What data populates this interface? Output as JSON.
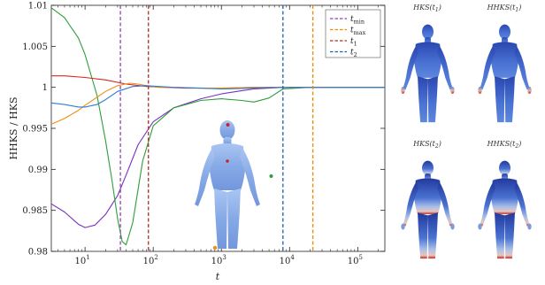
{
  "chart_data": {
    "type": "line",
    "xscale": "log",
    "xlim": [
      3.2,
      250000
    ],
    "ylim": [
      0.98,
      1.01
    ],
    "xlabel": "t",
    "ylabel": "HHKS / HKS",
    "grid": false,
    "legend_position": "top-right",
    "xticks": [
      {
        "value": 10,
        "label": "10",
        "exp": "1"
      },
      {
        "value": 100,
        "label": "10",
        "exp": "2"
      },
      {
        "value": 1000,
        "label": "10",
        "exp": "3"
      },
      {
        "value": 10000,
        "label": "10",
        "exp": "4"
      },
      {
        "value": 100000,
        "label": "10",
        "exp": "5"
      }
    ],
    "yticks": [
      {
        "value": 0.98,
        "label": "0.98"
      },
      {
        "value": 0.985,
        "label": "0.985"
      },
      {
        "value": 0.99,
        "label": "0.99"
      },
      {
        "value": 0.995,
        "label": "0.995"
      },
      {
        "value": 1.0,
        "label": "1"
      },
      {
        "value": 1.005,
        "label": "1.005"
      },
      {
        "value": 1.01,
        "label": "1.01"
      }
    ],
    "vlines": [
      {
        "key": "tmin",
        "sub": "min",
        "x": 33,
        "color": "#8e44ad"
      },
      {
        "key": "tmax",
        "sub": "max",
        "x": 22000,
        "color": "#f08c00"
      },
      {
        "key": "t1",
        "sub": "1",
        "x": 85,
        "color": "#b03020"
      },
      {
        "key": "t2",
        "sub": "2",
        "x": 8000,
        "color": "#1f5fa8"
      }
    ],
    "series": [
      {
        "color": "#7b2fbf",
        "x": [
          3.2,
          5,
          8,
          10,
          14,
          20,
          30,
          40,
          60,
          100,
          200,
          500,
          1000,
          2000,
          3000,
          5000,
          8000,
          20000,
          250000
        ],
        "y": [
          0.9858,
          0.9848,
          0.9833,
          0.9829,
          0.9832,
          0.9845,
          0.9868,
          0.9893,
          0.993,
          0.9958,
          0.9975,
          0.9986,
          0.9992,
          0.9996,
          0.9998,
          0.9999,
          1.0,
          1.0,
          1.0
        ]
      },
      {
        "color": "#2e9e3a",
        "x": [
          3.2,
          5,
          8,
          10,
          15,
          20,
          25,
          30,
          35,
          40,
          50,
          70,
          100,
          200,
          500,
          1000,
          2000,
          3000,
          5000,
          8000,
          20000,
          250000
        ],
        "y": [
          1.0097,
          1.0085,
          1.006,
          1.004,
          0.999,
          0.9935,
          0.9885,
          0.984,
          0.9812,
          0.9808,
          0.9835,
          0.991,
          0.9953,
          0.9975,
          0.9984,
          0.9986,
          0.9984,
          0.9982,
          0.9987,
          0.9998,
          1.0,
          1.0
        ]
      },
      {
        "color": "#d9261c",
        "x": [
          3.2,
          5,
          10,
          20,
          40,
          80,
          150,
          300,
          1000,
          3000,
          10000,
          250000
        ],
        "y": [
          1.0014,
          1.0014,
          1.0012,
          1.0009,
          1.0004,
          1.0001,
          1.0,
          0.9999,
          0.9999,
          1.0,
          1.0,
          1.0
        ]
      },
      {
        "color": "#f28c1a",
        "x": [
          3.2,
          5,
          8,
          10,
          15,
          20,
          30,
          45,
          60,
          80,
          120,
          200,
          500,
          1000,
          3000,
          10000,
          250000
        ],
        "y": [
          0.9955,
          0.9962,
          0.9972,
          0.9978,
          0.9988,
          0.9995,
          1.0002,
          1.0005,
          1.0004,
          1.0002,
          1.0,
          1.0,
          0.9999,
          0.9999,
          1.0,
          1.0,
          1.0
        ]
      },
      {
        "color": "#2a7fd0",
        "x": [
          3.2,
          5,
          8,
          10,
          15,
          20,
          30,
          50,
          80,
          120,
          200,
          500,
          1000,
          3000,
          8000,
          250000
        ],
        "y": [
          0.9981,
          0.9979,
          0.9976,
          0.9976,
          0.9979,
          0.9985,
          0.9995,
          1.0001,
          1.0002,
          1.0001,
          1.0,
          0.9999,
          0.9998,
          0.9999,
          1.0,
          1.0
        ]
      }
    ]
  },
  "panels": [
    {
      "key": "hks_t1",
      "label": "HKS(t",
      "sub": "1",
      "variant": "t1"
    },
    {
      "key": "hhks_t1",
      "label": "HHKS(t",
      "sub": "1",
      "variant": "t1"
    },
    {
      "key": "hks_t2",
      "label": "HKS(t",
      "sub": "2",
      "variant": "t2"
    },
    {
      "key": "hhks_t2",
      "label": "HHKS(t",
      "sub": "2",
      "variant": "t2"
    }
  ],
  "colors": {
    "axis": "#222222",
    "body_light": "#8fb3ea",
    "body_mid": "#3f68cc",
    "body_dark": "#2546b0",
    "hot": "#c0392b",
    "marker_red": "#d0202a",
    "marker_orange": "#f28c1a",
    "marker_green": "#2e9e3a"
  }
}
